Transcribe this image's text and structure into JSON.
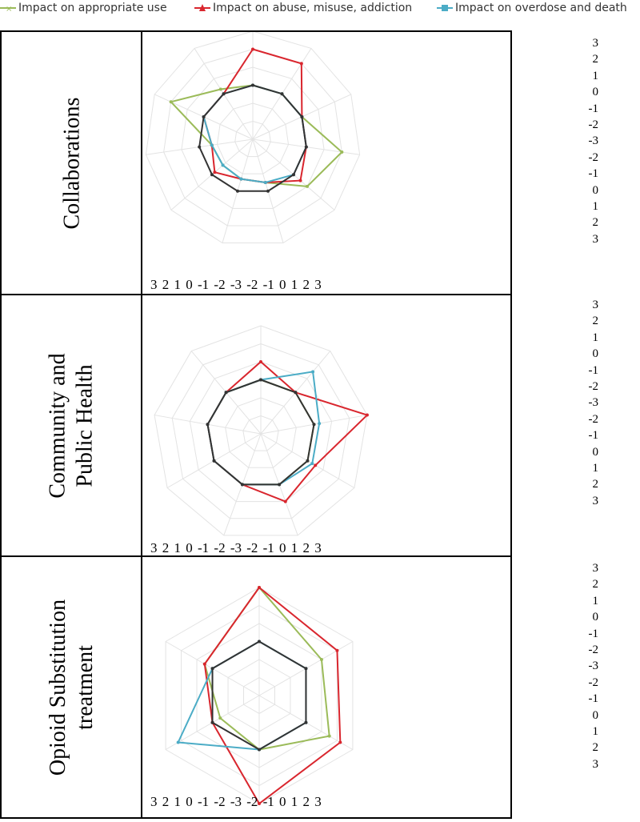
{
  "legend": {
    "items": [
      {
        "label": "Impact on appropriate use",
        "color": "#9bbb59"
      },
      {
        "label": "Impact on abuse, misuse, addiction",
        "color": "#d9262e"
      },
      {
        "label": "Impact on overdose and death",
        "color": "#4bacc6"
      }
    ]
  },
  "rows": [
    {
      "label_lines": [
        "Collaborations"
      ]
    },
    {
      "label_lines": [
        "Community and",
        "Public Health"
      ]
    },
    {
      "label_lines": [
        "Opioid Substitution",
        "treatment"
      ]
    }
  ],
  "vertical_ticks": [
    "3",
    "2",
    "1",
    "0",
    "-1",
    "-2",
    "-3",
    "-2",
    "-1",
    "0",
    "1",
    "2",
    "3"
  ],
  "horizontal_ticks": [
    "3",
    "2",
    "1",
    "0",
    "-1",
    "-2",
    "-3",
    "-2",
    "-1",
    "0",
    "1",
    "2",
    "3"
  ],
  "chart_data": [
    {
      "type": "radar",
      "axes_count": 11,
      "range": [
        -3,
        3
      ],
      "series": [
        {
          "name": "Impact on appropriate use",
          "color": "#9bbb59",
          "values": [
            0,
            0,
            0,
            2,
            1,
            -0.5,
            -0.7,
            -0.8,
            -0.7,
            2,
            0.3
          ]
        },
        {
          "name": "Impact on abuse, misuse, addiction",
          "color": "#d9262e",
          "values": [
            2,
            2,
            0,
            0,
            0.5,
            -0.5,
            -0.7,
            -0.2,
            -0.7,
            0,
            0
          ]
        },
        {
          "name": "Impact on overdose and death",
          "color": "#4bacc6",
          "values": [
            0,
            0,
            0,
            0,
            0,
            -0.5,
            -0.7,
            -0.8,
            -0.7,
            0,
            0
          ]
        },
        {
          "color": "#333333",
          "values": [
            0,
            0,
            0,
            0,
            0,
            0,
            0,
            0,
            0,
            0,
            0
          ]
        }
      ]
    },
    {
      "type": "radar",
      "axes_count": 9,
      "range": [
        -3,
        3
      ],
      "series": [
        {
          "name": "Impact on appropriate use",
          "color": "#9bbb59",
          "values": [
            0,
            0,
            0,
            0,
            0,
            0,
            0,
            0,
            0
          ]
        },
        {
          "name": "Impact on abuse, misuse, addiction",
          "color": "#d9262e",
          "values": [
            1,
            0,
            3,
            0.5,
            1,
            0,
            0,
            0,
            0
          ]
        },
        {
          "name": "Impact on overdose and death",
          "color": "#4bacc6",
          "values": [
            0,
            1.5,
            0.3,
            0.3,
            0,
            0,
            0,
            0,
            0
          ]
        },
        {
          "color": "#333333",
          "values": [
            0,
            0,
            0,
            0,
            0,
            0,
            0,
            0,
            0
          ]
        }
      ]
    },
    {
      "type": "radar",
      "axes_count": 6,
      "range": [
        -3,
        3
      ],
      "series": [
        {
          "name": "Impact on appropriate use",
          "color": "#9bbb59",
          "values": [
            3,
            1,
            1.5,
            0,
            -0.5,
            0.5
          ]
        },
        {
          "name": "Impact on abuse, misuse, addiction",
          "color": "#d9262e",
          "values": [
            3,
            2,
            2.2,
            3,
            0,
            0.5
          ]
        },
        {
          "name": "Impact on overdose and death",
          "color": "#4bacc6",
          "values": [
            0,
            0,
            0,
            0,
            2.2,
            0
          ]
        },
        {
          "color": "#333333",
          "values": [
            0,
            0,
            0,
            0,
            0,
            0
          ]
        }
      ]
    }
  ]
}
